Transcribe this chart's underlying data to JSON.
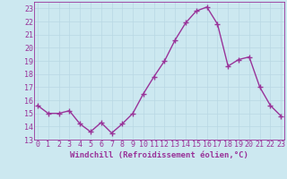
{
  "x": [
    0,
    1,
    2,
    3,
    4,
    5,
    6,
    7,
    8,
    9,
    10,
    11,
    12,
    13,
    14,
    15,
    16,
    17,
    18,
    19,
    20,
    21,
    22,
    23
  ],
  "y": [
    15.6,
    15.0,
    15.0,
    15.2,
    14.2,
    13.6,
    14.3,
    13.5,
    14.2,
    15.0,
    16.5,
    17.8,
    19.0,
    20.6,
    21.9,
    22.8,
    23.1,
    21.8,
    18.6,
    19.1,
    19.3,
    17.0,
    15.6,
    14.8
  ],
  "line_color": "#993399",
  "marker": "+",
  "marker_size": 4,
  "bg_color": "#cce8f0",
  "grid_color": "#b8d8e4",
  "tick_color": "#993399",
  "label_color": "#993399",
  "xlabel": "Windchill (Refroidissement éolien,°C)",
  "ylim": [
    13,
    23.5
  ],
  "xlim": [
    -0.3,
    23.3
  ],
  "yticks": [
    13,
    14,
    15,
    16,
    17,
    18,
    19,
    20,
    21,
    22,
    23
  ],
  "xticks": [
    0,
    1,
    2,
    3,
    4,
    5,
    6,
    7,
    8,
    9,
    10,
    11,
    12,
    13,
    14,
    15,
    16,
    17,
    18,
    19,
    20,
    21,
    22,
    23
  ],
  "axis_fontsize": 6.5,
  "tick_fontsize": 6.0,
  "linewidth": 1.0
}
